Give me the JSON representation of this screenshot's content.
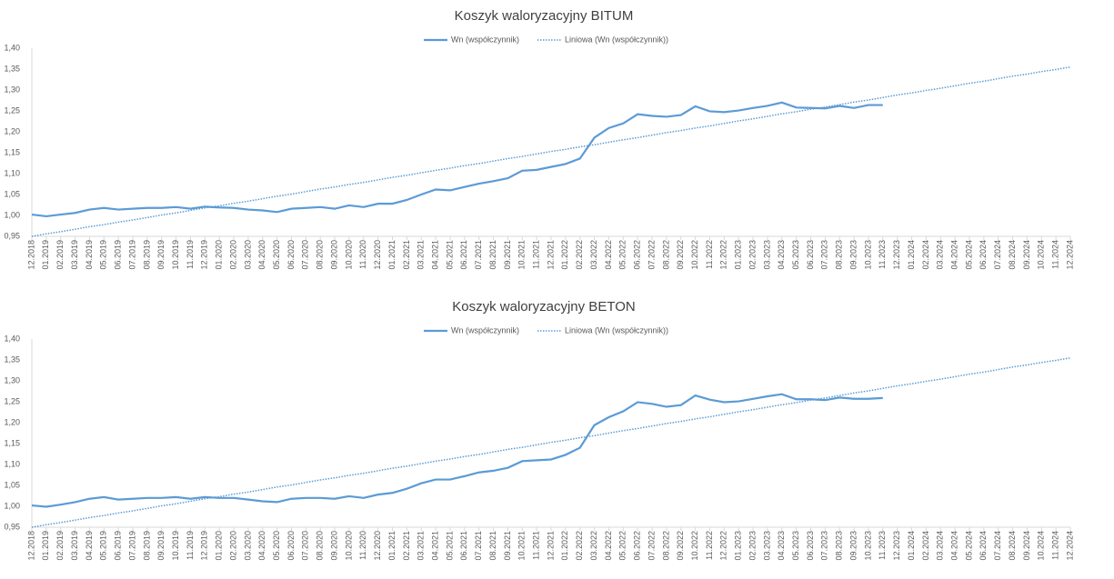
{
  "chart_data": [
    {
      "type": "line",
      "title": "Koszyk waloryzacyjny BITUM",
      "categories": [
        "12.2018",
        "01.2019",
        "02.2019",
        "03.2019",
        "04.2019",
        "05.2019",
        "06.2019",
        "07.2019",
        "08.2019",
        "09.2019",
        "10.2019",
        "11.2019",
        "12.2019",
        "01.2020",
        "02.2020",
        "03.2020",
        "04.2020",
        "05.2020",
        "06.2020",
        "07.2020",
        "08.2020",
        "09.2020",
        "10.2020",
        "11.2020",
        "12.2020",
        "01.2021",
        "02.2021",
        "03.2021",
        "04.2021",
        "05.2021",
        "06.2021",
        "07.2021",
        "08.2021",
        "09.2021",
        "10.2021",
        "11.2021",
        "12.2021",
        "01.2022",
        "02.2022",
        "03.2022",
        "04.2022",
        "05.2022",
        "06.2022",
        "07.2022",
        "08.2022",
        "09.2022",
        "10.2022",
        "11.2022",
        "12.2022",
        "01.2023",
        "02.2023",
        "03.2023",
        "04.2023",
        "05.2023",
        "06.2023",
        "07.2023",
        "08.2023",
        "09.2023",
        "10.2023",
        "11.2023",
        "12.2023",
        "01.2024",
        "02.2024",
        "03.2024",
        "04.2024",
        "05.2024",
        "06.2024",
        "07.2024",
        "08.2024",
        "09.2024",
        "10.2024",
        "11.2024",
        "12.2024"
      ],
      "series": [
        {
          "name": "Wn (współczynnik)",
          "color": "#5b9bd5",
          "dash": "solid",
          "values": [
            1.002,
            0.998,
            1.002,
            1.006,
            1.014,
            1.018,
            1.014,
            1.016,
            1.018,
            1.018,
            1.02,
            1.016,
            1.021,
            1.019,
            1.018,
            1.014,
            1.012,
            1.008,
            1.016,
            1.018,
            1.02,
            1.016,
            1.024,
            1.02,
            1.028,
            1.028,
            1.037,
            1.05,
            1.062,
            1.06,
            1.068,
            1.076,
            1.082,
            1.089,
            1.107,
            1.109,
            1.116,
            1.123,
            1.136,
            1.186,
            1.209,
            1.22,
            1.242,
            1.238,
            1.236,
            1.24,
            1.261,
            1.249,
            1.247,
            1.251,
            1.257,
            1.262,
            1.27,
            1.258,
            1.257,
            1.256,
            1.262,
            1.257,
            1.264,
            1.264,
            null,
            null,
            null,
            null,
            null,
            null,
            null,
            null,
            null,
            null,
            null,
            null,
            null
          ]
        },
        {
          "name": "Liniowa (Wn (współczynnik))",
          "color": "#5b9bd5",
          "dash": "dotted",
          "values": [
            0.95,
            0.956,
            0.961,
            0.967,
            0.973,
            0.978,
            0.984,
            0.989,
            0.995,
            1.001,
            1.006,
            1.012,
            1.018,
            1.023,
            1.029,
            1.034,
            1.04,
            1.046,
            1.051,
            1.057,
            1.063,
            1.068,
            1.074,
            1.079,
            1.085,
            1.091,
            1.096,
            1.102,
            1.108,
            1.113,
            1.119,
            1.124,
            1.13,
            1.136,
            1.141,
            1.147,
            1.153,
            1.158,
            1.164,
            1.169,
            1.175,
            1.181,
            1.186,
            1.192,
            1.198,
            1.203,
            1.209,
            1.214,
            1.22,
            1.226,
            1.231,
            1.237,
            1.243,
            1.248,
            1.254,
            1.259,
            1.265,
            1.271,
            1.276,
            1.282,
            1.288,
            1.293,
            1.299,
            1.304,
            1.31,
            1.316,
            1.321,
            1.327,
            1.333,
            1.338,
            1.344,
            1.349,
            1.355
          ]
        }
      ],
      "ylim": [
        0.95,
        1.4
      ],
      "yticks": [
        {
          "value": 0.95,
          "label": "0,95"
        },
        {
          "value": 1.0,
          "label": "1,00"
        },
        {
          "value": 1.05,
          "label": "1,05"
        },
        {
          "value": 1.1,
          "label": "1,10"
        },
        {
          "value": 1.15,
          "label": "1,15"
        },
        {
          "value": 1.2,
          "label": "1,20"
        },
        {
          "value": 1.25,
          "label": "1,25"
        },
        {
          "value": 1.3,
          "label": "1,30"
        },
        {
          "value": 1.35,
          "label": "1,35"
        },
        {
          "value": 1.4,
          "label": "1,40"
        }
      ],
      "grid": false,
      "legend": "top"
    },
    {
      "type": "line",
      "title": "Koszyk waloryzacyjny BETON",
      "categories": [
        "12.2018",
        "01.2019",
        "02.2019",
        "03.2019",
        "04.2019",
        "05.2019",
        "06.2019",
        "07.2019",
        "08.2019",
        "09.2019",
        "10.2019",
        "11.2019",
        "12.2019",
        "01.2020",
        "02.2020",
        "03.2020",
        "04.2020",
        "05.2020",
        "06.2020",
        "07.2020",
        "08.2020",
        "09.2020",
        "10.2020",
        "11.2020",
        "12.2020",
        "01.2021",
        "02.2021",
        "03.2021",
        "04.2021",
        "05.2021",
        "06.2021",
        "07.2021",
        "08.2021",
        "09.2021",
        "10.2021",
        "11.2021",
        "12.2021",
        "01.2022",
        "02.2022",
        "03.2022",
        "04.2022",
        "05.2022",
        "06.2022",
        "07.2022",
        "08.2022",
        "09.2022",
        "10.2022",
        "11.2022",
        "12.2022",
        "01.2023",
        "02.2023",
        "03.2023",
        "04.2023",
        "05.2023",
        "06.2023",
        "07.2023",
        "08.2023",
        "09.2023",
        "10.2023",
        "11.2023",
        "12.2023",
        "01.2024",
        "02.2024",
        "03.2024",
        "04.2024",
        "05.2024",
        "06.2024",
        "07.2024",
        "08.2024",
        "09.2024",
        "10.2024",
        "11.2024",
        "12.2024"
      ],
      "series": [
        {
          "name": "Wn (współczynnik)",
          "color": "#5b9bd5",
          "dash": "solid",
          "values": [
            1.002,
            0.999,
            1.004,
            1.01,
            1.018,
            1.022,
            1.016,
            1.018,
            1.02,
            1.02,
            1.022,
            1.018,
            1.022,
            1.02,
            1.02,
            1.016,
            1.012,
            1.01,
            1.018,
            1.02,
            1.02,
            1.018,
            1.024,
            1.02,
            1.028,
            1.032,
            1.042,
            1.055,
            1.064,
            1.064,
            1.072,
            1.081,
            1.085,
            1.092,
            1.108,
            1.11,
            1.112,
            1.123,
            1.14,
            1.194,
            1.213,
            1.227,
            1.249,
            1.245,
            1.238,
            1.242,
            1.265,
            1.255,
            1.249,
            1.251,
            1.257,
            1.263,
            1.268,
            1.256,
            1.256,
            1.254,
            1.26,
            1.257,
            1.257,
            1.259,
            null,
            null,
            null,
            null,
            null,
            null,
            null,
            null,
            null,
            null,
            null,
            null,
            null
          ]
        },
        {
          "name": "Liniowa (Wn (współczynnik))",
          "color": "#5b9bd5",
          "dash": "dotted",
          "values": [
            0.95,
            0.956,
            0.961,
            0.967,
            0.973,
            0.978,
            0.984,
            0.989,
            0.995,
            1.001,
            1.006,
            1.012,
            1.018,
            1.023,
            1.029,
            1.034,
            1.04,
            1.046,
            1.051,
            1.057,
            1.063,
            1.068,
            1.074,
            1.079,
            1.085,
            1.091,
            1.096,
            1.102,
            1.108,
            1.113,
            1.119,
            1.124,
            1.13,
            1.136,
            1.141,
            1.147,
            1.153,
            1.158,
            1.164,
            1.169,
            1.175,
            1.181,
            1.186,
            1.192,
            1.198,
            1.203,
            1.209,
            1.214,
            1.22,
            1.226,
            1.231,
            1.237,
            1.243,
            1.248,
            1.254,
            1.259,
            1.265,
            1.271,
            1.276,
            1.282,
            1.288,
            1.293,
            1.299,
            1.304,
            1.31,
            1.316,
            1.321,
            1.327,
            1.333,
            1.338,
            1.344,
            1.349,
            1.355
          ]
        }
      ],
      "ylim": [
        0.95,
        1.4
      ],
      "yticks": [
        {
          "value": 0.95,
          "label": "0,95"
        },
        {
          "value": 1.0,
          "label": "1,00"
        },
        {
          "value": 1.05,
          "label": "1,05"
        },
        {
          "value": 1.1,
          "label": "1,10"
        },
        {
          "value": 1.15,
          "label": "1,15"
        },
        {
          "value": 1.2,
          "label": "1,20"
        },
        {
          "value": 1.25,
          "label": "1,25"
        },
        {
          "value": 1.3,
          "label": "1,30"
        },
        {
          "value": 1.35,
          "label": "1,35"
        },
        {
          "value": 1.4,
          "label": "1,40"
        }
      ],
      "grid": false,
      "legend": "top"
    }
  ]
}
